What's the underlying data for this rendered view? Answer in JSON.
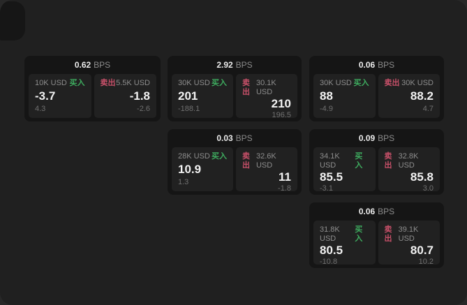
{
  "colors": {
    "buy": "#3eac5f",
    "sell": "#c75069"
  },
  "labels": {
    "buy": "买入",
    "sell": "卖出",
    "bps_suffix": "BPS"
  },
  "cards": [
    {
      "bps_value": "0.62",
      "buy": {
        "size": "10K USD",
        "price": "-3.7",
        "change": "4.3"
      },
      "sell": {
        "size": "5.5K USD",
        "price": "-1.8",
        "change": "-2.6"
      }
    },
    {
      "bps_value": "2.92",
      "buy": {
        "size": "30K USD",
        "price": "201",
        "change": "-188.1"
      },
      "sell": {
        "size": "30.1K USD",
        "price": "210",
        "change": "196.5"
      }
    },
    {
      "bps_value": "0.06",
      "buy": {
        "size": "30K USD",
        "price": "88",
        "change": "-4.9"
      },
      "sell": {
        "size": "30K USD",
        "price": "88.2",
        "change": "4.7"
      }
    },
    {
      "bps_value": "0.03",
      "buy": {
        "size": "28K USD",
        "price": "10.9",
        "change": "1.3"
      },
      "sell": {
        "size": "32.6K USD",
        "price": "11",
        "change": "-1.8"
      }
    },
    {
      "bps_value": "0.09",
      "buy": {
        "size": "34.1K USD",
        "price": "85.5",
        "change": "-3.1"
      },
      "sell": {
        "size": "32.8K USD",
        "price": "85.8",
        "change": "3.0"
      }
    },
    {
      "bps_value": "0.06",
      "buy": {
        "size": "31.8K USD",
        "price": "80.5",
        "change": "-10.8"
      },
      "sell": {
        "size": "39.1K USD",
        "price": "80.7",
        "change": "10.2"
      }
    }
  ]
}
